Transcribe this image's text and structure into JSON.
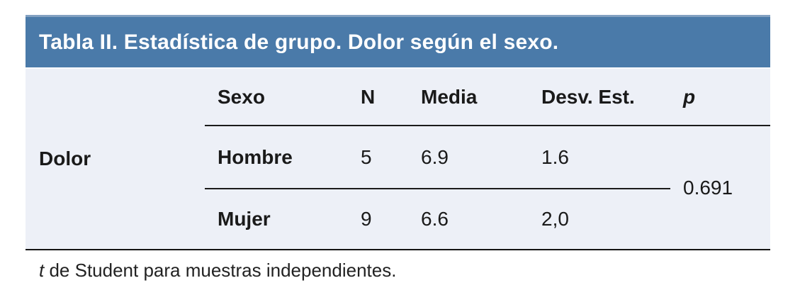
{
  "table": {
    "title": "Tabla II. Estadística de grupo. Dolor según el sexo.",
    "row_group_label": "Dolor",
    "columns": [
      "Sexo",
      "N",
      "Media",
      "Desv. Est.",
      "p"
    ],
    "rows": [
      {
        "sexo": "Hombre",
        "n": "5",
        "media": "6.9",
        "desv_est": "1.6"
      },
      {
        "sexo": "Mujer",
        "n": "9",
        "media": "6.6",
        "desv_est": "2,0"
      }
    ],
    "p_value": "0.691",
    "footnote_prefix": "t",
    "footnote_rest": " de Student para muestras independientes."
  },
  "colors": {
    "header_bg": "#4a7aa9",
    "header_highlight": "#83a1c1",
    "body_bg": "#edf0f7",
    "title_text": "#ffffff",
    "text": "#1a1a1a",
    "rule": "#1b1b1b"
  }
}
